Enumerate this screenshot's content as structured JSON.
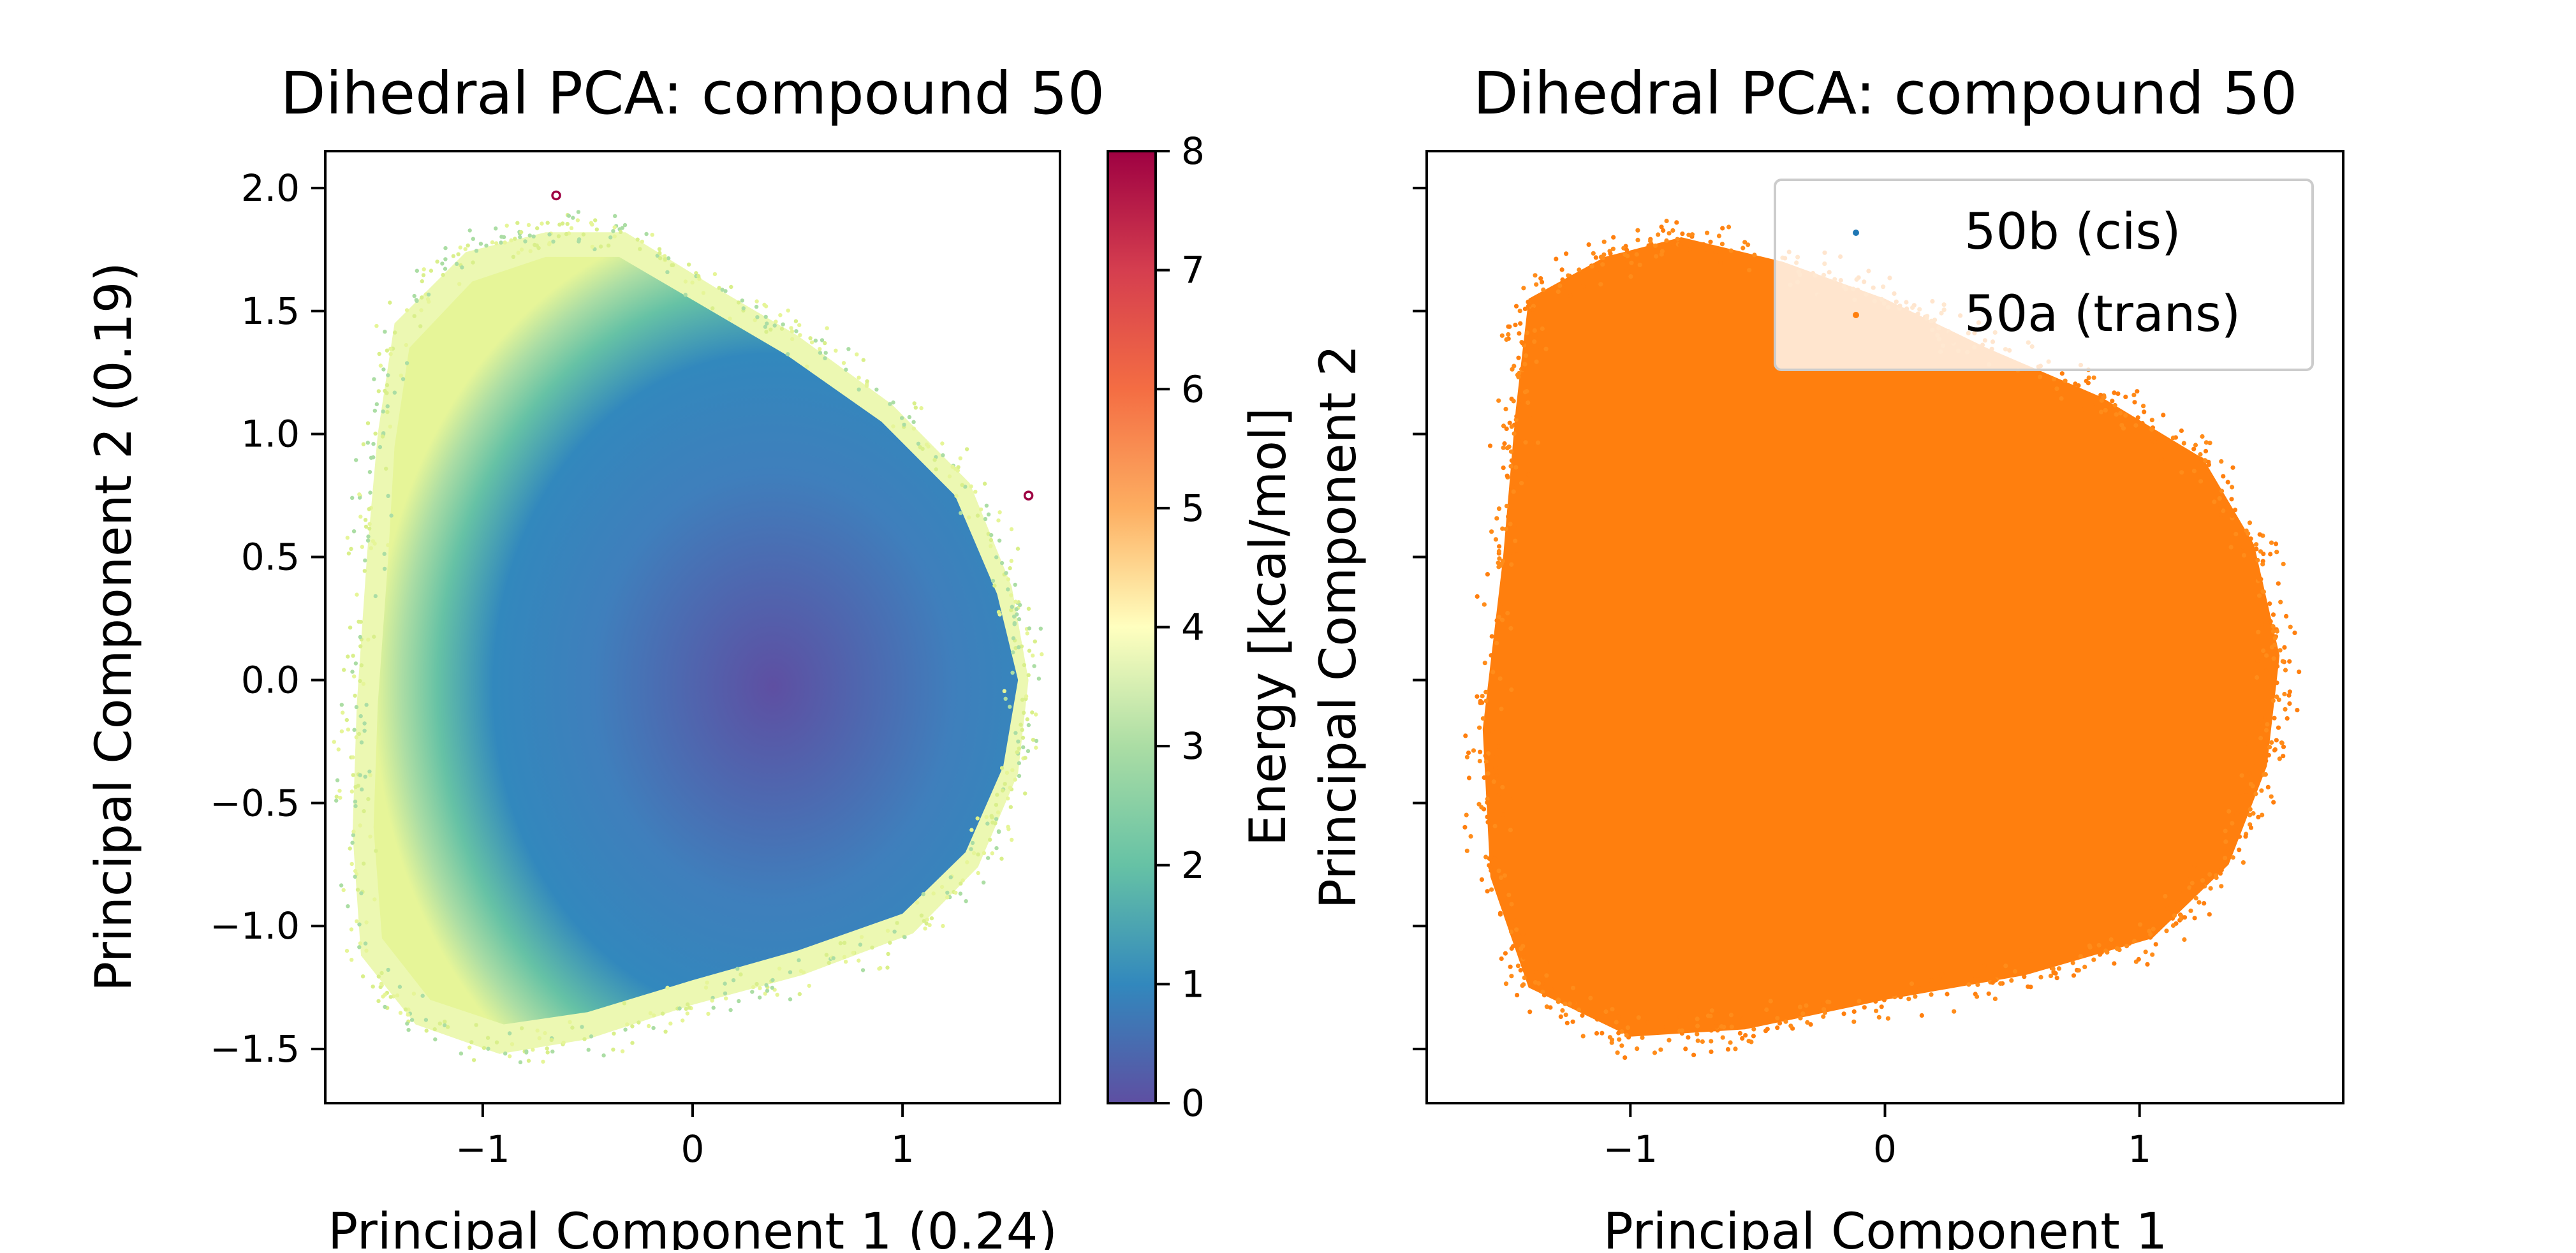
{
  "chart_data": [
    {
      "type": "scatter",
      "title": "Dihedral PCA: compound 50",
      "xlabel": "Principal Component 1 (0.24)",
      "ylabel": "Principal Component 2 (0.19)",
      "xlim": [
        -1.75,
        1.75
      ],
      "ylim": [
        -1.72,
        2.15
      ],
      "xticks": [
        "−1",
        "0",
        "1"
      ],
      "yticks": [
        "−1.5",
        "−1.0",
        "−0.5",
        "0.0",
        "0.5",
        "1.0",
        "1.5",
        "2.0"
      ],
      "grid": false,
      "color_by": "energy",
      "colormap": "Spectral_r",
      "points": [
        {
          "x": -0.65,
          "y": 1.97,
          "energy": 8.0
        },
        {
          "x": 1.6,
          "y": 0.75,
          "energy": 8.0
        }
      ],
      "density_cloud": {
        "pc1_range": [
          -1.55,
          1.55
        ],
        "pc2_range": [
          -1.55,
          1.78
        ],
        "energy_min_at": [
          0.5,
          0.0
        ],
        "energy_min": 0.0
      },
      "colorbar": {
        "label": "Energy [kcal/mol]",
        "range": [
          0,
          8
        ],
        "ticks": [
          "0",
          "1",
          "2",
          "3",
          "4",
          "5",
          "6",
          "7",
          "8"
        ]
      }
    },
    {
      "type": "scatter",
      "title": "Dihedral PCA: compound 50",
      "xlabel": "Principal Component 1",
      "ylabel": "Principal Component 2",
      "xlim": [
        -1.8,
        1.8
      ],
      "ylim": [
        -1.72,
        2.15
      ],
      "xticks": [
        "−1",
        "0",
        "1"
      ],
      "grid": false,
      "legend_position": "top-right",
      "series": [
        {
          "name": "50b (cis)",
          "color": "#1f77b4"
        },
        {
          "name": "50a (trans)",
          "color": "#ff7f0e"
        }
      ],
      "density_cloud": {
        "pc1_range": [
          -1.6,
          1.6
        ],
        "pc2_range": [
          -1.55,
          1.85
        ]
      }
    }
  ]
}
